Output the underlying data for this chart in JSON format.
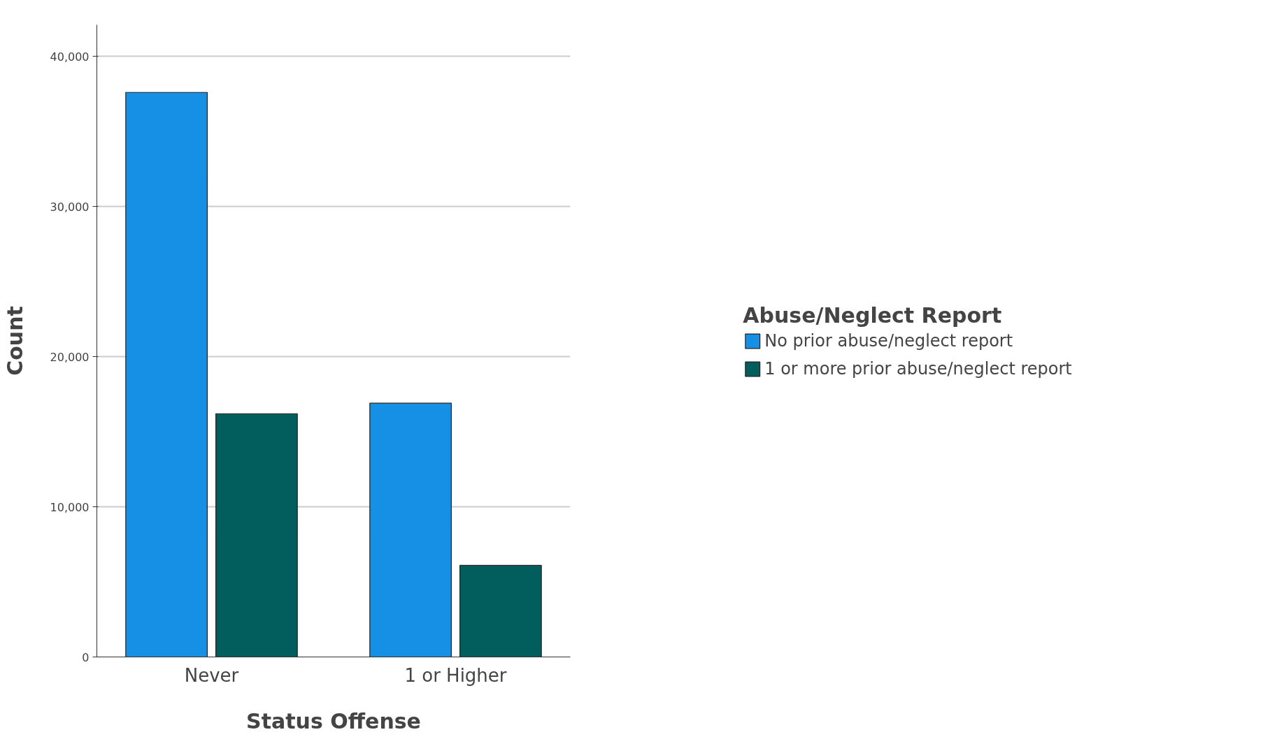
{
  "chart_data": {
    "type": "bar",
    "xlabel": "Status Offense",
    "ylabel": "Count",
    "legend_title": "Abuse/Neglect Report",
    "categories": [
      "Never",
      "1 or Higher"
    ],
    "series": [
      {
        "name": "No prior abuse/neglect report",
        "color": "#1690e4",
        "values": [
          37600,
          16900
        ]
      },
      {
        "name": "1 or more prior abuse/neglect report",
        "color": "#025e5c",
        "values": [
          16200,
          6100
        ]
      }
    ],
    "ylim": [
      0,
      42100
    ],
    "yticks": [
      0,
      {
        "value": 10000,
        "label": "10,000"
      },
      {
        "value": 20000,
        "label": "20,000"
      },
      {
        "value": 30000,
        "label": "30,000"
      },
      {
        "value": 40000,
        "label": "40,000"
      }
    ],
    "grid": "y",
    "legend": "right"
  }
}
